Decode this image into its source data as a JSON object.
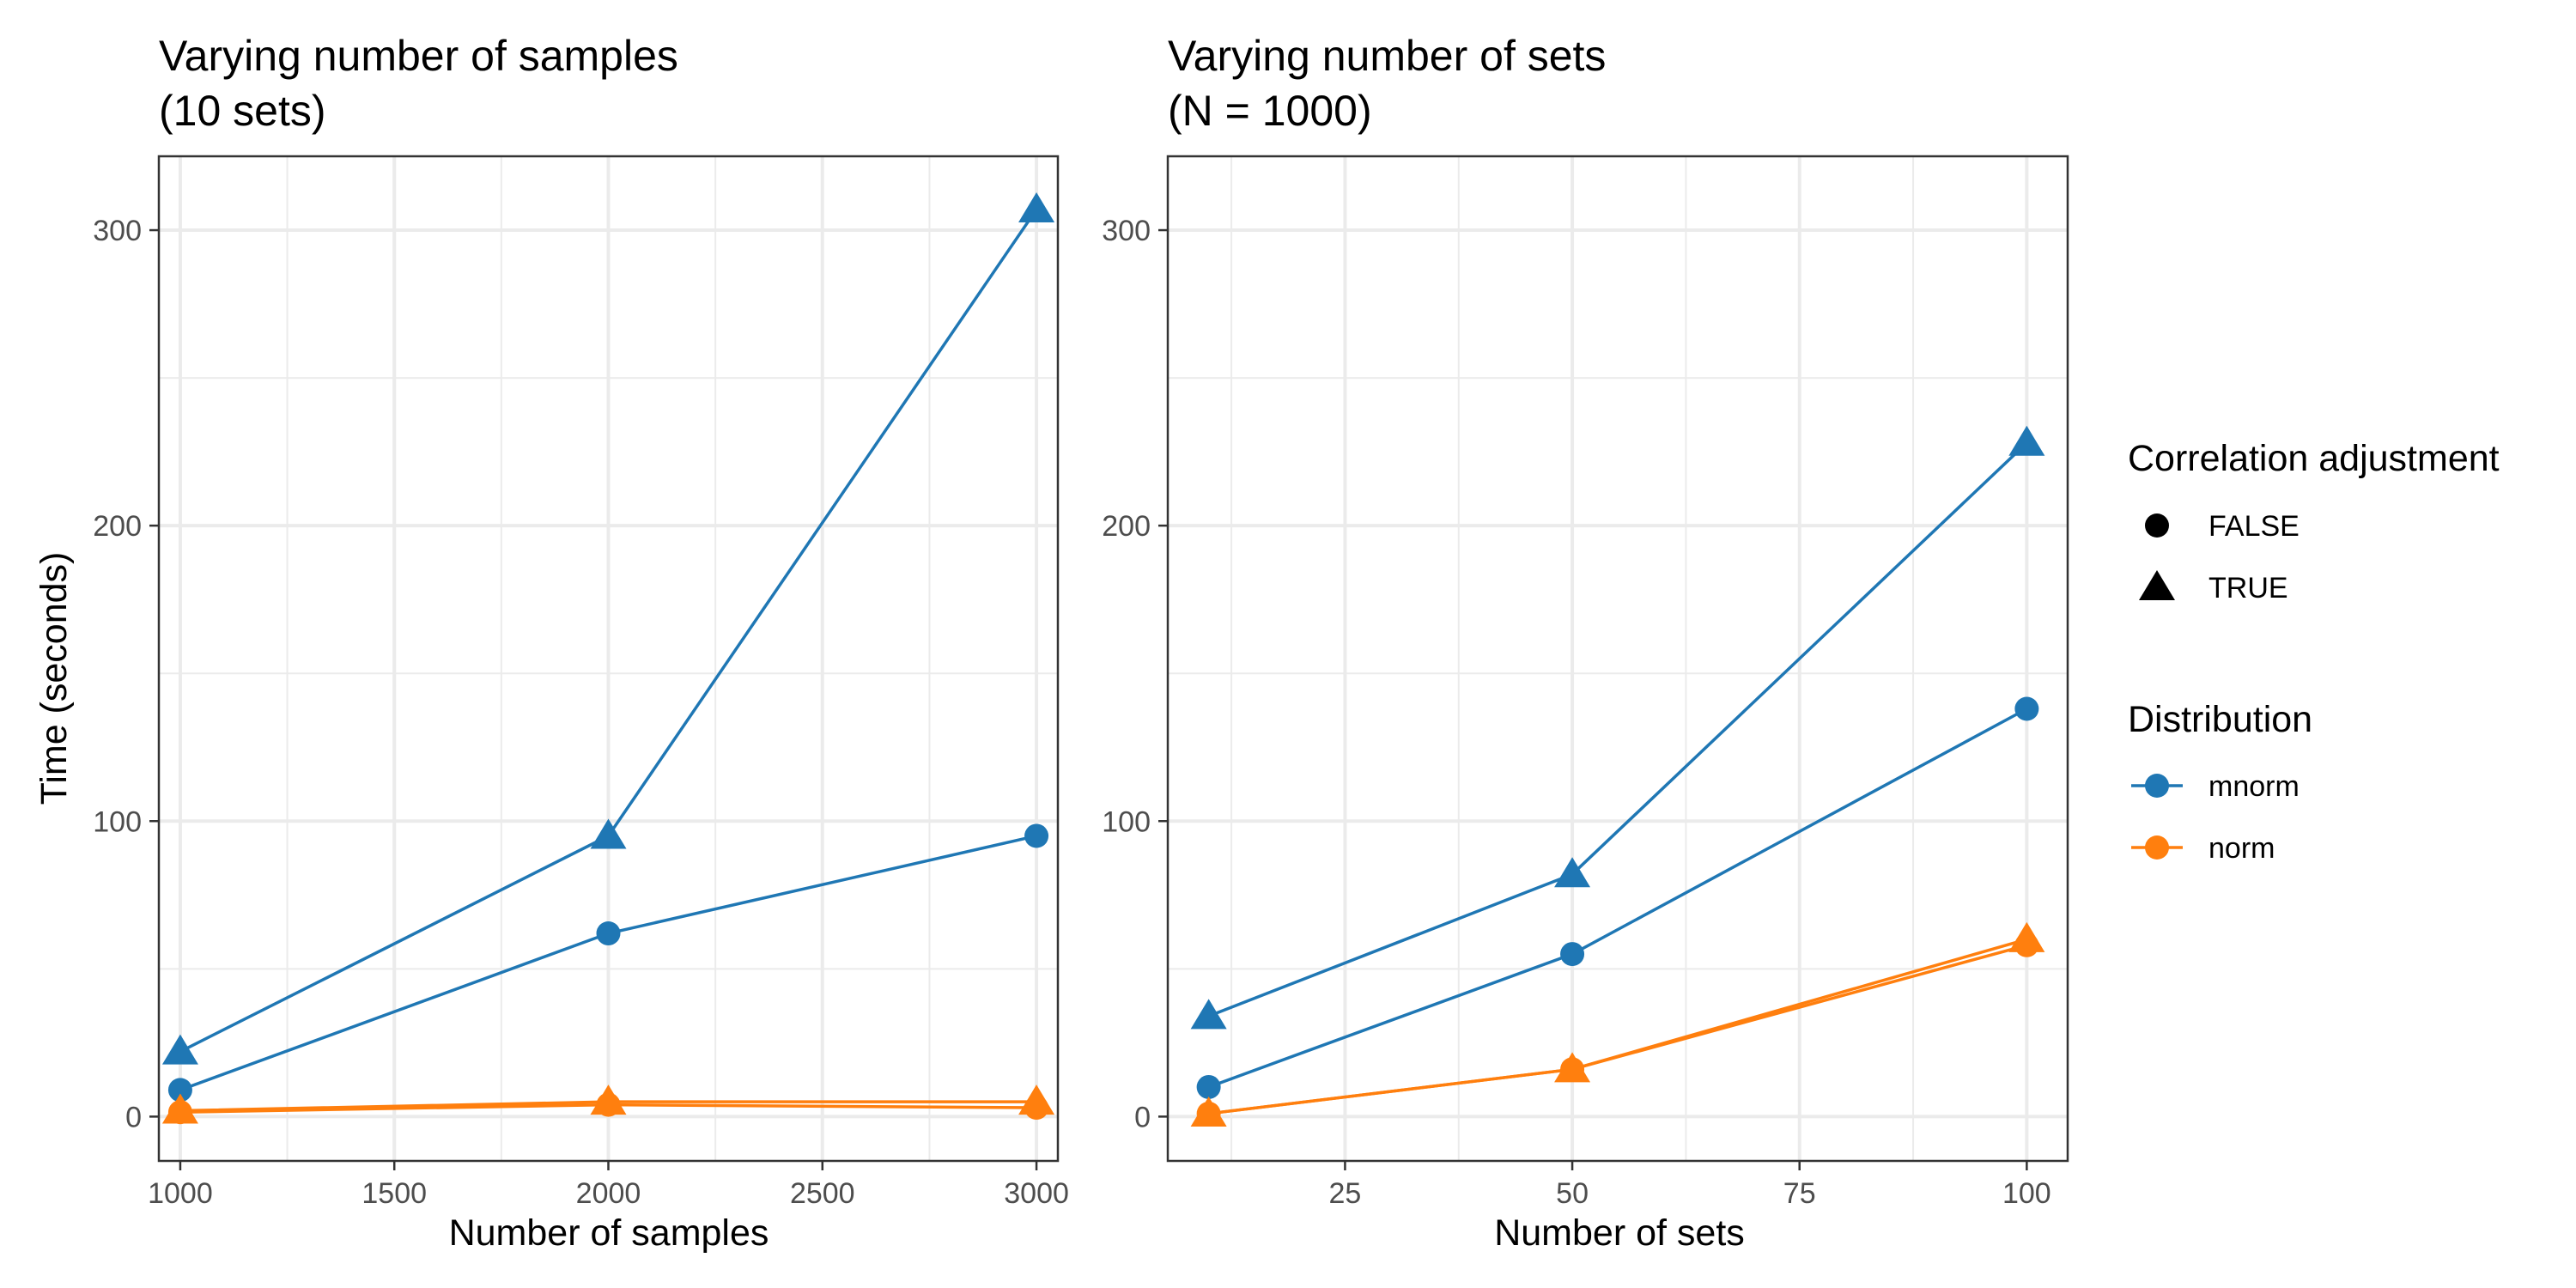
{
  "colors": {
    "mnorm": "#1f77b4",
    "norm": "#ff7f0e",
    "grid": "#ebebeb",
    "frame": "#333333",
    "tick_text": "#4d4d4d",
    "text": "#000000"
  },
  "chart_data": [
    {
      "type": "line",
      "title": "Varying number of samples",
      "subtitle": "(10 sets)",
      "xlabel": "Number of samples",
      "ylabel": "Time (seconds)",
      "xlim": [
        950,
        3050
      ],
      "ylim": [
        -15,
        325
      ],
      "x_ticks": [
        1000,
        1500,
        2000,
        2500,
        3000
      ],
      "y_ticks": [
        0,
        100,
        200,
        300
      ],
      "grid": true,
      "series": [
        {
          "distribution": "mnorm",
          "correlation_adjustment": "TRUE",
          "x": [
            1000,
            2000,
            3000
          ],
          "values": [
            22,
            95,
            307
          ]
        },
        {
          "distribution": "mnorm",
          "correlation_adjustment": "FALSE",
          "x": [
            1000,
            2000,
            3000
          ],
          "values": [
            9,
            62,
            95
          ]
        },
        {
          "distribution": "norm",
          "correlation_adjustment": "TRUE",
          "x": [
            1000,
            2000,
            3000
          ],
          "values": [
            2,
            5,
            5
          ]
        },
        {
          "distribution": "norm",
          "correlation_adjustment": "FALSE",
          "x": [
            1000,
            2000,
            3000
          ],
          "values": [
            1.5,
            4,
            3
          ]
        }
      ]
    },
    {
      "type": "line",
      "title": "Varying number of sets",
      "subtitle": "(N = 1000)",
      "xlabel": "Number of sets",
      "ylabel": "",
      "xlim": [
        5.5,
        104.5
      ],
      "ylim": [
        -15,
        325
      ],
      "x_ticks": [
        25,
        50,
        75,
        100
      ],
      "y_ticks": [
        0,
        100,
        200,
        300
      ],
      "grid": true,
      "series": [
        {
          "distribution": "mnorm",
          "correlation_adjustment": "TRUE",
          "x": [
            10,
            50,
            100
          ],
          "values": [
            34,
            82,
            228
          ]
        },
        {
          "distribution": "mnorm",
          "correlation_adjustment": "FALSE",
          "x": [
            10,
            50,
            100
          ],
          "values": [
            10,
            55,
            138
          ]
        },
        {
          "distribution": "norm",
          "correlation_adjustment": "TRUE",
          "x": [
            10,
            50,
            100
          ],
          "values": [
            1,
            16,
            60
          ]
        },
        {
          "distribution": "norm",
          "correlation_adjustment": "FALSE",
          "x": [
            10,
            50,
            100
          ],
          "values": [
            1,
            16,
            58
          ]
        }
      ]
    }
  ],
  "legend": {
    "placement": "right",
    "shape_title": "Correlation adjustment",
    "shape_items": [
      {
        "label": "FALSE",
        "shape": "circle"
      },
      {
        "label": "TRUE",
        "shape": "triangle"
      }
    ],
    "color_title": "Distribution",
    "color_items": [
      {
        "label": "mnorm",
        "color_key": "mnorm"
      },
      {
        "label": "norm",
        "color_key": "norm"
      }
    ]
  }
}
